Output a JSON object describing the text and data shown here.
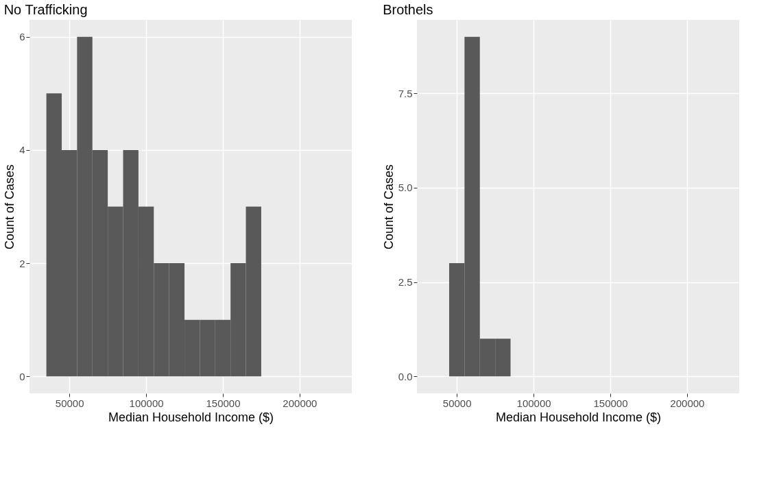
{
  "chart_data": [
    {
      "type": "histogram",
      "title": "No Trafficking",
      "xlabel": "Median Household Income ($)",
      "ylabel": "Count of Cases",
      "color": "#595959",
      "grid": true,
      "bins": [
        35000,
        45000,
        55000,
        65000,
        75000,
        85000,
        95000,
        105000,
        115000,
        125000,
        135000,
        145000,
        155000,
        165000,
        175000
      ],
      "values": [
        5,
        4,
        6,
        4,
        3,
        4,
        3,
        2,
        2,
        1,
        1,
        1,
        2,
        3
      ],
      "xlim": [
        24000,
        234000
      ],
      "xticks": [
        50000,
        100000,
        150000,
        200000
      ],
      "ylim": [
        -0.3,
        6.3
      ],
      "yticks": [
        0,
        2,
        4,
        6
      ]
    },
    {
      "type": "histogram",
      "title": "Brothels",
      "xlabel": "Median Household Income ($)",
      "ylabel": "Count of Cases",
      "color": "#595959",
      "grid": true,
      "bins": [
        45000,
        55000,
        65000,
        75000,
        85000
      ],
      "values": [
        3,
        9,
        1,
        1
      ],
      "xlim": [
        24000,
        234000
      ],
      "xticks": [
        50000,
        100000,
        150000,
        200000
      ],
      "ylim": [
        -0.45,
        9.45
      ],
      "yticks": [
        {
          "value": 0,
          "label": "0.0"
        },
        {
          "value": 2.5,
          "label": "2.5"
        },
        {
          "value": 5,
          "label": "5.0"
        },
        {
          "value": 7.5,
          "label": "7.5"
        }
      ]
    }
  ]
}
